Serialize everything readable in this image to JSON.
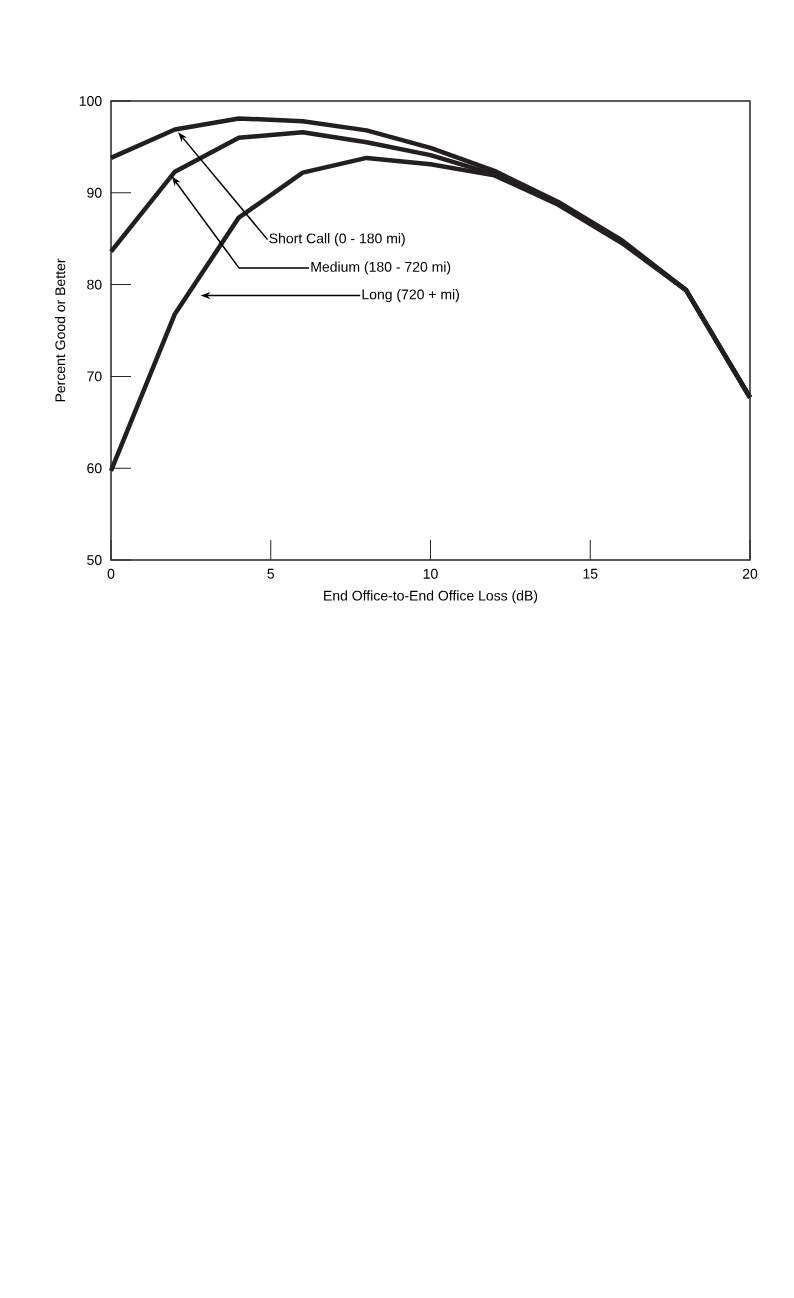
{
  "chart_data": {
    "type": "line",
    "xlabel": "End Office-to-End Office Loss (dB)",
    "ylabel": "Percent Good or Better",
    "xlim": [
      0,
      20
    ],
    "xticks": [
      0,
      5,
      10,
      15,
      20
    ],
    "ylim": [
      50,
      100
    ],
    "yticks": [
      50,
      60,
      70,
      80,
      90,
      100
    ],
    "x": [
      0,
      2,
      4,
      6,
      8,
      10,
      12,
      14,
      16,
      18,
      20
    ],
    "series": [
      {
        "color": "#231f20",
        "values": [
          93.8,
          96.9,
          98.1,
          97.8,
          96.8,
          94.9,
          92.4,
          89.0,
          84.8,
          79.4,
          67.7
        ]
      },
      {
        "color": "#231f20",
        "values": [
          83.6,
          92.3,
          96.0,
          96.6,
          95.5,
          94.1,
          92.0,
          88.8,
          84.6,
          79.4,
          67.7
        ]
      },
      {
        "color": "#231f20",
        "values": [
          59.7,
          76.8,
          87.3,
          92.2,
          93.8,
          93.1,
          91.9,
          88.7,
          84.5,
          79.4,
          67.7
        ]
      }
    ],
    "annotations": [
      "Short Call (0 - 180 mi)",
      "Medium (180 - 720 mi)",
      "Long (720 +  mi)"
    ],
    "marker": "none",
    "line_style": "solid",
    "grid": false
  }
}
